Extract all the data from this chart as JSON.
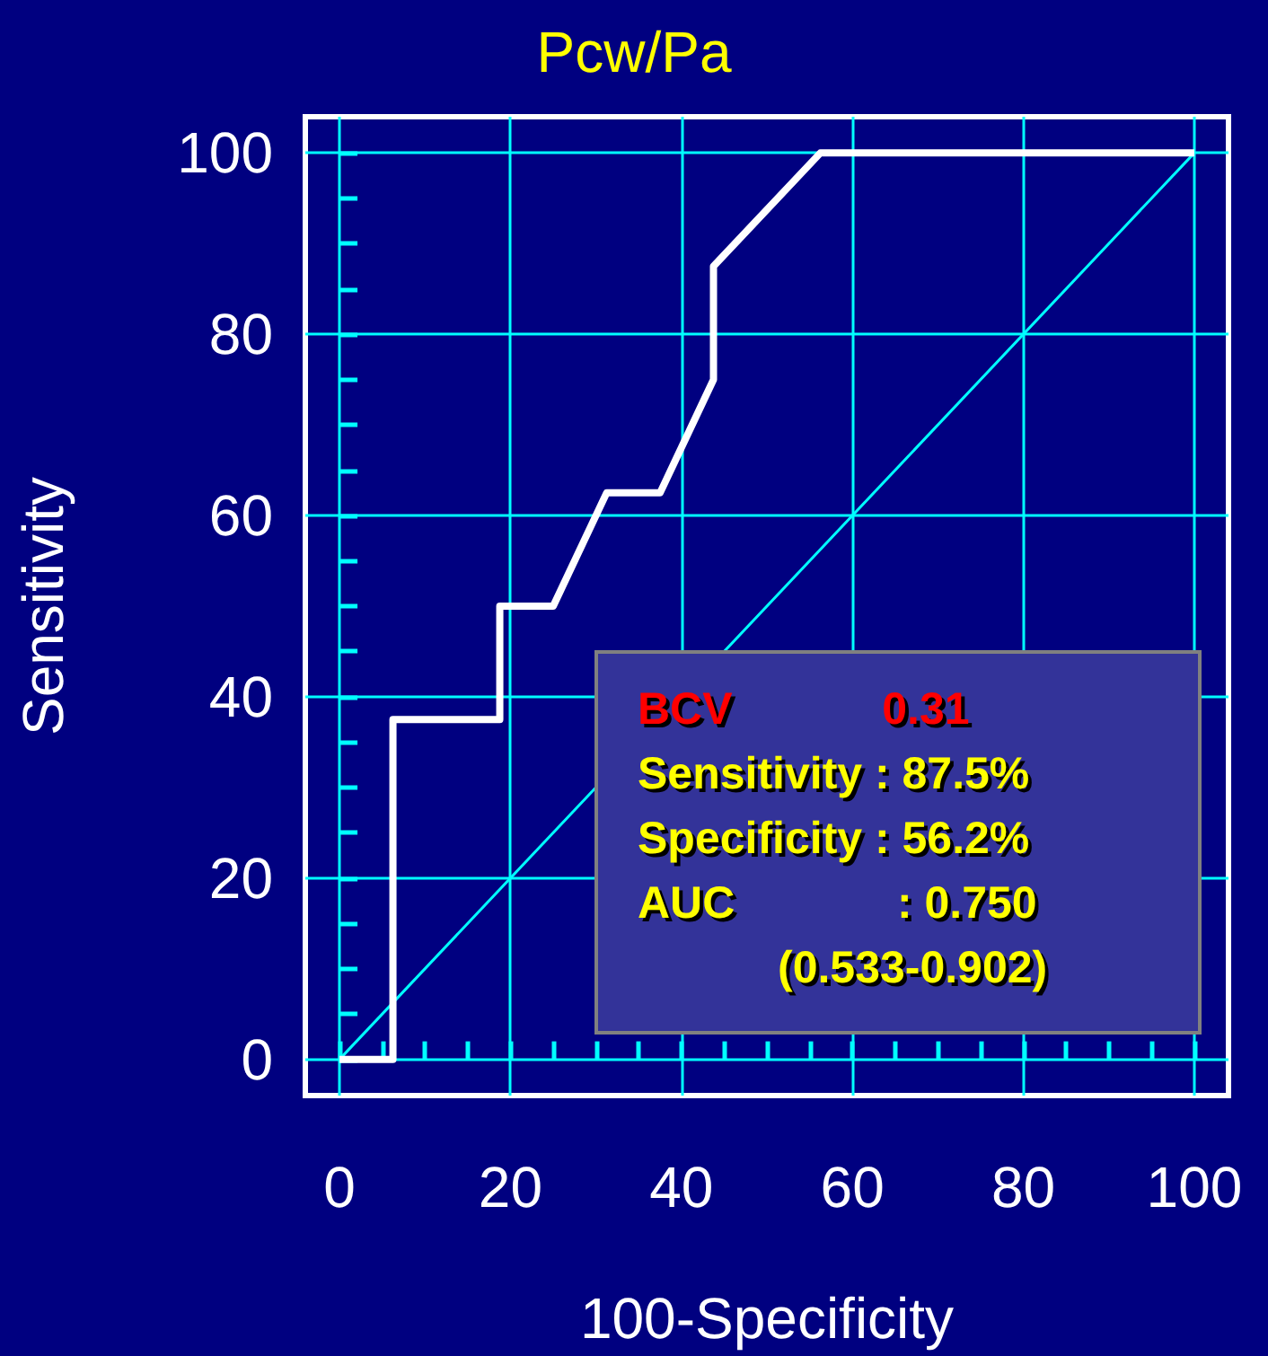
{
  "chart_data": {
    "type": "line",
    "title": "Pcw/Pa",
    "xlabel": "100-Specificity",
    "ylabel": "Sensitivity",
    "series": [
      {
        "color": "#ffffff",
        "x": [
          0,
          6.25,
          6.25,
          18.75,
          18.75,
          25,
          31.25,
          37.5,
          43.75,
          43.75,
          56.25,
          100
        ],
        "values": [
          0,
          0,
          37.5,
          37.5,
          50,
          50,
          62.5,
          62.5,
          75,
          87.5,
          100,
          100
        ]
      },
      {
        "color": "#00ffff",
        "x": [
          0,
          100
        ],
        "values": [
          0,
          100
        ]
      }
    ],
    "xlim": [
      -4,
      104
    ],
    "ylim": [
      -4,
      104
    ],
    "xticks": [
      0,
      {
        "value": 5,
        "label": null
      },
      {
        "value": 10,
        "label": null
      },
      {
        "value": 15,
        "label": null
      },
      20,
      {
        "value": 25,
        "label": null
      },
      {
        "value": 30,
        "label": null
      },
      {
        "value": 35,
        "label": null
      },
      40,
      {
        "value": 45,
        "label": null
      },
      {
        "value": 50,
        "label": null
      },
      {
        "value": 55,
        "label": null
      },
      60,
      {
        "value": 65,
        "label": null
      },
      {
        "value": 70,
        "label": null
      },
      {
        "value": 75,
        "label": null
      },
      80,
      {
        "value": 85,
        "label": null
      },
      {
        "value": 90,
        "label": null
      },
      {
        "value": 95,
        "label": null
      },
      100
    ],
    "yticks": [
      0,
      {
        "value": 5,
        "label": null
      },
      {
        "value": 10,
        "label": null
      },
      {
        "value": 15,
        "label": null
      },
      20,
      {
        "value": 25,
        "label": null
      },
      {
        "value": 30,
        "label": null
      },
      {
        "value": 35,
        "label": null
      },
      40,
      {
        "value": 45,
        "label": null
      },
      {
        "value": 50,
        "label": null
      },
      {
        "value": 55,
        "label": null
      },
      60,
      {
        "value": 65,
        "label": null
      },
      {
        "value": 70,
        "label": null
      },
      {
        "value": 75,
        "label": null
      },
      80,
      {
        "value": 85,
        "label": null
      },
      {
        "value": 90,
        "label": null
      },
      {
        "value": 95,
        "label": null
      },
      100
    ],
    "grid": true,
    "marker": "none",
    "line_style": "solid",
    "annotations": [
      "BCV            0.31",
      "Sensitivity : 87.5%",
      "Specificity : 56.2%",
      "AUC             : 0.750",
      "(0.533-0.902)"
    ]
  }
}
